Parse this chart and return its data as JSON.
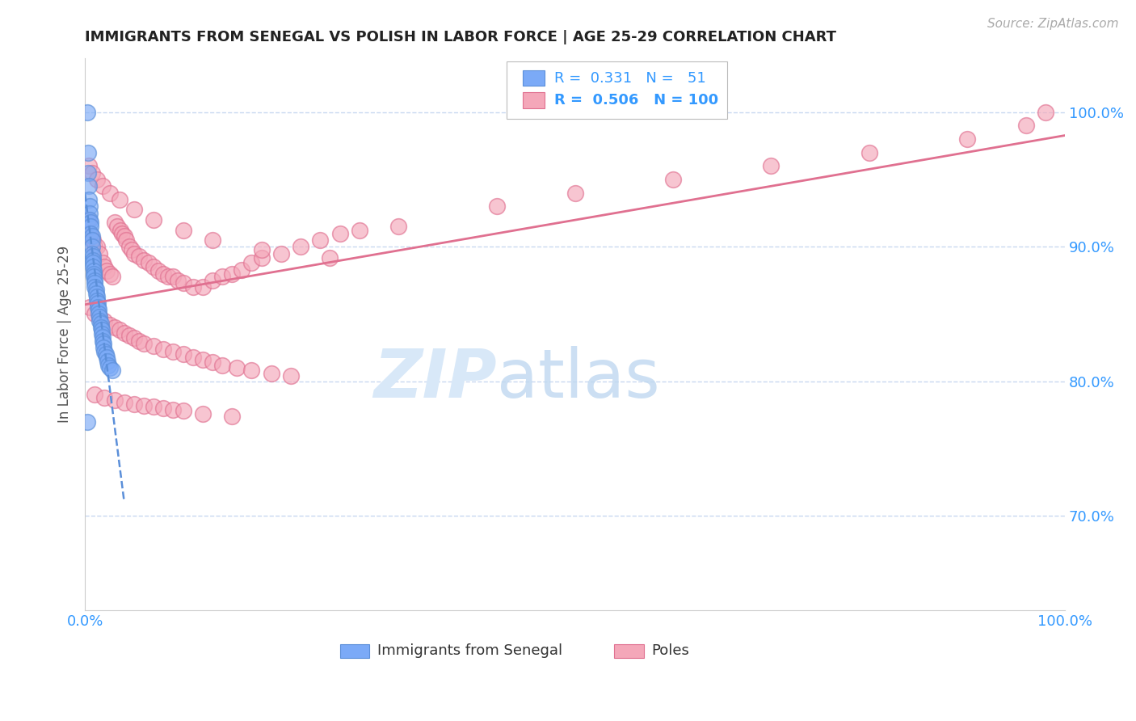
{
  "title": "IMMIGRANTS FROM SENEGAL VS POLISH IN LABOR FORCE | AGE 25-29 CORRELATION CHART",
  "source_text": "Source: ZipAtlas.com",
  "ylabel": "In Labor Force | Age 25-29",
  "legend_label1": "Immigrants from Senegal",
  "legend_label2": "Poles",
  "R1": "0.331",
  "N1": "51",
  "R2": "0.506",
  "N2": "100",
  "color_senegal": "#7BAAF7",
  "color_poles": "#F4A7B9",
  "color_senegal_edge": "#5B8FD9",
  "color_poles_edge": "#E07090",
  "color_senegal_line": "#5B8FD9",
  "color_poles_line": "#E07090",
  "xlim": [
    0.0,
    1.0
  ],
  "ylim": [
    0.63,
    1.04
  ],
  "yticks": [
    0.7,
    0.8,
    0.9,
    1.0
  ],
  "ytick_labels": [
    "70.0%",
    "80.0%",
    "90.0%",
    "100.0%"
  ],
  "xticks": [
    0.0,
    1.0
  ],
  "xtick_labels": [
    "0.0%",
    "100.0%"
  ],
  "grid_color": "#C8D8F0",
  "senegal_x": [
    0.002,
    0.003,
    0.003,
    0.004,
    0.004,
    0.005,
    0.005,
    0.005,
    0.006,
    0.006,
    0.006,
    0.007,
    0.007,
    0.007,
    0.007,
    0.008,
    0.008,
    0.008,
    0.008,
    0.009,
    0.009,
    0.009,
    0.01,
    0.01,
    0.01,
    0.011,
    0.011,
    0.012,
    0.012,
    0.013,
    0.013,
    0.014,
    0.014,
    0.015,
    0.015,
    0.016,
    0.016,
    0.017,
    0.017,
    0.018,
    0.018,
    0.019,
    0.019,
    0.02,
    0.021,
    0.022,
    0.023,
    0.024,
    0.025,
    0.028,
    0.002
  ],
  "senegal_y": [
    1.0,
    0.97,
    0.955,
    0.945,
    0.935,
    0.93,
    0.925,
    0.92,
    0.918,
    0.915,
    0.91,
    0.908,
    0.905,
    0.9,
    0.895,
    0.893,
    0.89,
    0.888,
    0.885,
    0.882,
    0.88,
    0.878,
    0.875,
    0.873,
    0.87,
    0.868,
    0.865,
    0.863,
    0.86,
    0.858,
    0.855,
    0.853,
    0.85,
    0.848,
    0.845,
    0.843,
    0.84,
    0.838,
    0.835,
    0.833,
    0.83,
    0.828,
    0.825,
    0.822,
    0.82,
    0.818,
    0.815,
    0.812,
    0.81,
    0.808,
    0.77
  ],
  "poles_x": [
    0.003,
    0.005,
    0.008,
    0.01,
    0.012,
    0.015,
    0.018,
    0.02,
    0.022,
    0.025,
    0.028,
    0.03,
    0.033,
    0.036,
    0.038,
    0.04,
    0.042,
    0.045,
    0.048,
    0.05,
    0.055,
    0.06,
    0.065,
    0.07,
    0.075,
    0.08,
    0.085,
    0.09,
    0.095,
    0.1,
    0.11,
    0.12,
    0.13,
    0.14,
    0.15,
    0.16,
    0.17,
    0.18,
    0.2,
    0.22,
    0.24,
    0.26,
    0.28,
    0.005,
    0.01,
    0.015,
    0.02,
    0.025,
    0.03,
    0.035,
    0.04,
    0.045,
    0.05,
    0.055,
    0.06,
    0.07,
    0.08,
    0.09,
    0.1,
    0.11,
    0.12,
    0.13,
    0.14,
    0.155,
    0.17,
    0.19,
    0.21,
    0.01,
    0.02,
    0.03,
    0.04,
    0.05,
    0.06,
    0.07,
    0.08,
    0.09,
    0.1,
    0.12,
    0.15,
    0.004,
    0.007,
    0.012,
    0.018,
    0.025,
    0.035,
    0.05,
    0.07,
    0.1,
    0.13,
    0.18,
    0.25,
    0.32,
    0.42,
    0.5,
    0.6,
    0.7,
    0.8,
    0.9,
    0.96,
    0.98
  ],
  "poles_y": [
    0.92,
    0.91,
    0.905,
    0.9,
    0.9,
    0.895,
    0.888,
    0.885,
    0.882,
    0.88,
    0.878,
    0.918,
    0.915,
    0.912,
    0.91,
    0.908,
    0.905,
    0.9,
    0.898,
    0.895,
    0.893,
    0.89,
    0.888,
    0.885,
    0.882,
    0.88,
    0.878,
    0.878,
    0.875,
    0.873,
    0.87,
    0.87,
    0.875,
    0.878,
    0.88,
    0.883,
    0.888,
    0.892,
    0.895,
    0.9,
    0.905,
    0.91,
    0.912,
    0.855,
    0.85,
    0.848,
    0.845,
    0.842,
    0.84,
    0.838,
    0.836,
    0.834,
    0.832,
    0.83,
    0.828,
    0.826,
    0.824,
    0.822,
    0.82,
    0.818,
    0.816,
    0.814,
    0.812,
    0.81,
    0.808,
    0.806,
    0.804,
    0.79,
    0.788,
    0.786,
    0.784,
    0.783,
    0.782,
    0.781,
    0.78,
    0.779,
    0.778,
    0.776,
    0.774,
    0.96,
    0.955,
    0.95,
    0.945,
    0.94,
    0.935,
    0.928,
    0.92,
    0.912,
    0.905,
    0.898,
    0.892,
    0.915,
    0.93,
    0.94,
    0.95,
    0.96,
    0.97,
    0.98,
    0.99,
    1.0
  ]
}
